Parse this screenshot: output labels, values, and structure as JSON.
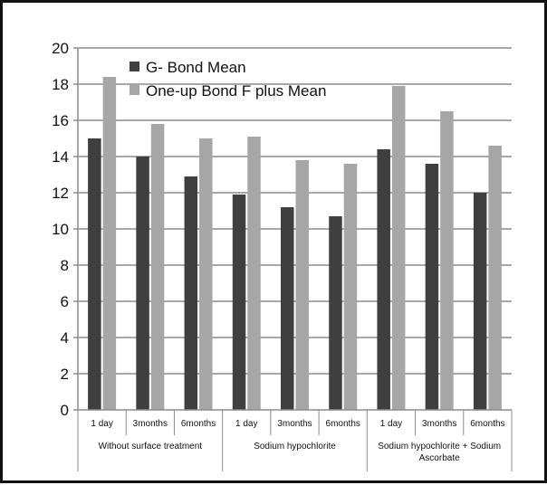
{
  "chart_data": {
    "type": "bar",
    "title": "",
    "xlabel": "",
    "ylabel": "",
    "ylim": [
      0,
      20
    ],
    "y_ticks": [
      "0",
      "2",
      "4",
      "6",
      "8",
      "10",
      "12",
      "14",
      "16",
      "18",
      "20"
    ],
    "grid": true,
    "legend_position": "top-left",
    "categories": [
      "1 day",
      "3months",
      "6months",
      "1 day",
      "3months",
      "6months",
      "1 day",
      "3months",
      "6months"
    ],
    "groups": [
      {
        "label_lines": [
          "Without surface treatment"
        ],
        "start": 0,
        "end": 3
      },
      {
        "label_lines": [
          "Sodium hypochlorite"
        ],
        "start": 3,
        "end": 6
      },
      {
        "label_lines": [
          "Sodium hypochlorite + Sodium",
          "Ascorbate"
        ],
        "start": 6,
        "end": 9
      }
    ],
    "series": [
      {
        "name": "G- Bond Mean",
        "color": "#3f3f3f",
        "values": [
          15.0,
          14.0,
          12.9,
          11.9,
          11.2,
          10.7,
          14.4,
          13.6,
          12.0
        ]
      },
      {
        "name": "One-up Bond F plus Mean",
        "color": "#a6a6a6",
        "values": [
          18.4,
          15.8,
          15.0,
          15.1,
          13.8,
          13.6,
          17.9,
          16.5,
          14.6
        ]
      }
    ]
  }
}
